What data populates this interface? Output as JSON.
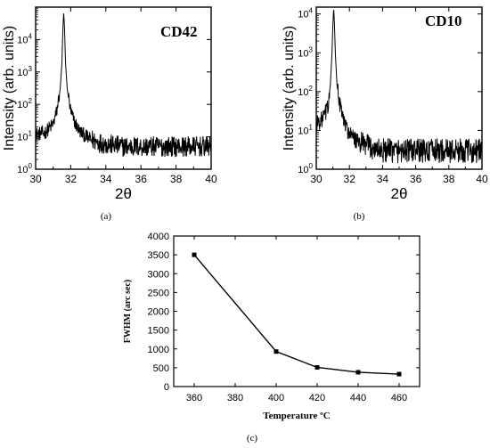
{
  "chart_data": [
    {
      "panel": "(a)",
      "type": "line",
      "annotation": "CD42",
      "xlabel": "2θ",
      "ylabel": "Intensity (arb. units)",
      "xlim": [
        30,
        40
      ],
      "xticks": [
        30,
        32,
        34,
        36,
        38,
        40
      ],
      "ylim": [
        1,
        100000
      ],
      "yscale": "log",
      "yticks": [
        1,
        10,
        100,
        1000,
        10000
      ],
      "ytick_labels": [
        [
          "10",
          "0"
        ],
        [
          "10",
          "1"
        ],
        [
          "10",
          "2"
        ],
        [
          "10",
          "3"
        ],
        [
          "10",
          "4"
        ]
      ],
      "peak_x": 31.6,
      "peak_y": 70000,
      "background_level": 5,
      "x": [
        30.0,
        30.5,
        31.0,
        31.2,
        31.4,
        31.5,
        31.55,
        31.6,
        31.65,
        31.7,
        31.8,
        32.0,
        32.2,
        32.5,
        33.0,
        33.5,
        34.0,
        35.0,
        36.0,
        37.0,
        38.0,
        39.0,
        40.0
      ],
      "y": [
        12,
        13,
        25,
        60,
        300,
        2000,
        20000,
        70000,
        20000,
        2000,
        300,
        60,
        30,
        15,
        9,
        7,
        6,
        5,
        5,
        5,
        5,
        5,
        5
      ]
    },
    {
      "panel": "(b)",
      "type": "line",
      "annotation": "CD10",
      "xlabel": "2θ",
      "ylabel": "Intensity (arb. units)",
      "xlim": [
        30,
        40
      ],
      "xticks": [
        30,
        32,
        34,
        36,
        38,
        40
      ],
      "ylim": [
        1,
        15000
      ],
      "yscale": "log",
      "yticks": [
        1,
        10,
        100,
        1000,
        10000
      ],
      "ytick_labels": [
        [
          "10",
          "0"
        ],
        [
          "10",
          "1"
        ],
        [
          "10",
          "2"
        ],
        [
          "10",
          "3"
        ],
        [
          "10",
          "4"
        ]
      ],
      "peak_x": 31.05,
      "peak_y": 15000,
      "background_level": 3,
      "x": [
        30.0,
        30.4,
        30.7,
        30.85,
        30.95,
        31.0,
        31.05,
        31.1,
        31.15,
        31.25,
        31.4,
        31.7,
        32.0,
        32.5,
        33.0,
        34.0,
        35.0,
        36.0,
        37.0,
        38.0,
        39.0,
        40.0
      ],
      "y": [
        15,
        20,
        40,
        150,
        1000,
        5000,
        15000,
        5000,
        1000,
        150,
        50,
        15,
        8,
        5,
        4,
        3,
        3,
        3,
        3,
        3,
        3,
        3
      ]
    },
    {
      "panel": "(c)",
      "type": "line",
      "xlabel": "Temperature ºC",
      "ylabel": "FWHM (arc sec)",
      "xlim": [
        350,
        470
      ],
      "xticks": [
        360,
        380,
        400,
        420,
        440,
        460
      ],
      "ylim": [
        0,
        4000
      ],
      "yticks": [
        0,
        500,
        1000,
        1500,
        2000,
        2500,
        3000,
        3500,
        4000
      ],
      "x": [
        360,
        400,
        420,
        440,
        460
      ],
      "y": [
        3500,
        930,
        510,
        380,
        330
      ]
    }
  ]
}
